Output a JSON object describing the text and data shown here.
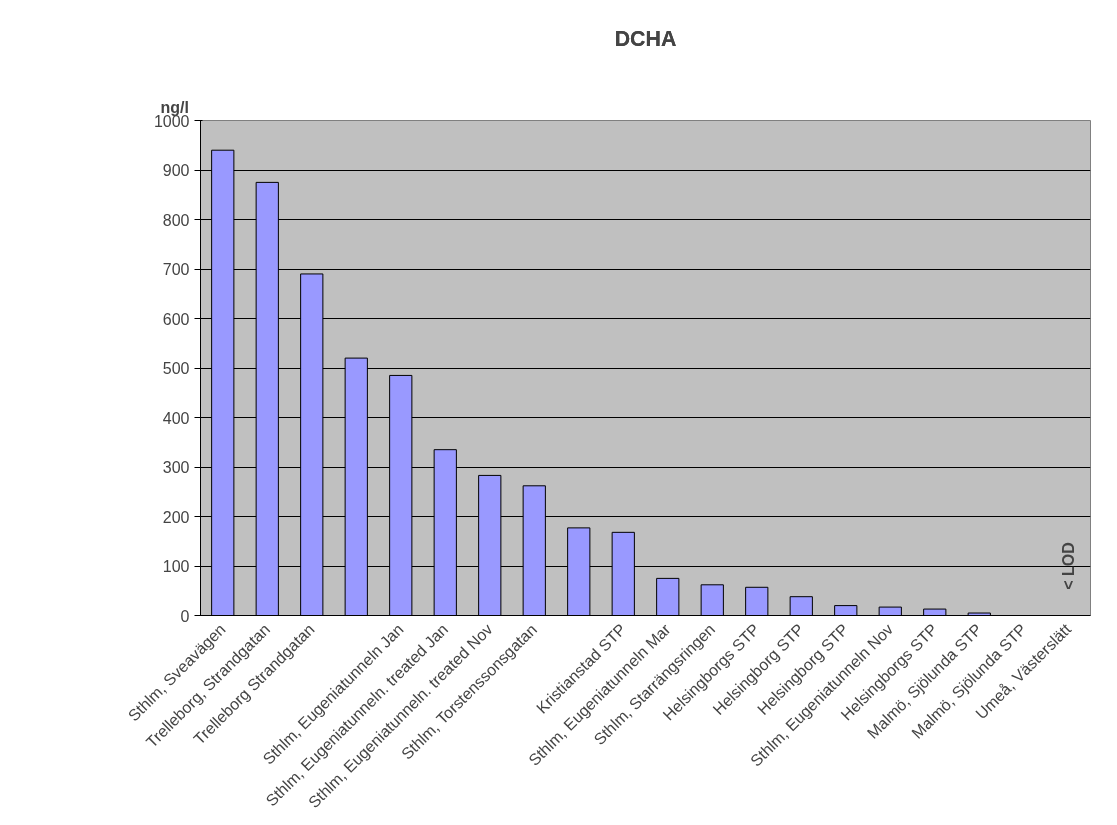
{
  "chart_data": {
    "type": "bar",
    "title": "DCHA",
    "ylabel": "ng/l",
    "categories": [
      "Sthlm, Sveavägen",
      "Trelleborg, Strandgatan",
      "Trelleborg Strandgatan",
      null,
      "Sthlm, Eugeniatunneln Jan",
      "Sthlm, Eugeniatunneln. treated Jan",
      "Sthlm, Eugeniatunneln. treated Nov",
      "Sthlm, Torstenssonsgatan",
      null,
      "Kristianstad STP",
      "Sthlm, Eugeniatunneln Mar",
      "Sthlm, Starrängsringen",
      "Helsingborgs STP",
      "Helsingborg STP",
      "Helsingborg STP",
      "Sthlm, Eugeniatunneln Nov",
      "Helsingborgs STP",
      "Malmö, Sjölunda STP",
      "Malmö, Sjölunda STP",
      "Umeå, Västerslätt"
    ],
    "values": [
      940,
      875,
      690,
      520,
      485,
      335,
      283,
      262,
      177,
      168,
      75,
      62,
      57,
      38,
      20,
      17,
      13,
      5,
      null,
      null
    ],
    "color": "#9999ff",
    "ylim": [
      0,
      1000
    ],
    "yticks": [
      0,
      100,
      200,
      300,
      400,
      500,
      600,
      700,
      800,
      900,
      1000
    ],
    "grid": "y",
    "annotations": [
      "< LOD"
    ]
  }
}
